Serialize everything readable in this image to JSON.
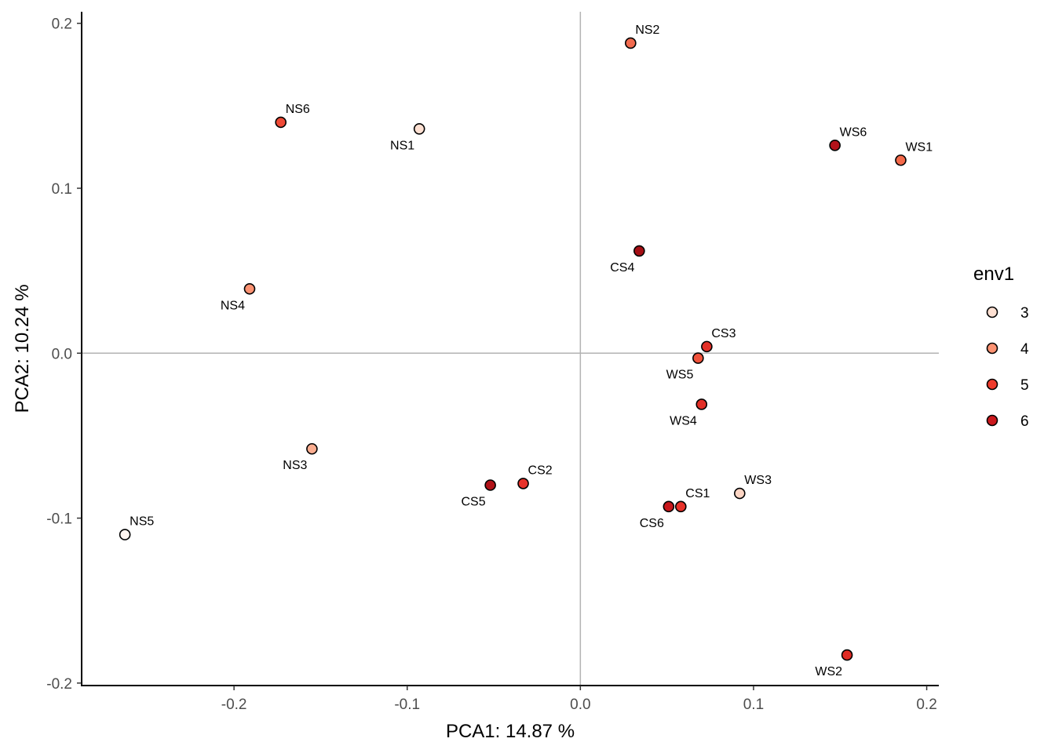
{
  "chart_data": {
    "type": "scatter",
    "title": "",
    "xlabel": "PCA1:  14.87 %",
    "ylabel": "PCA2:  10.24 %",
    "xlim": [
      -0.288,
      0.207
    ],
    "ylim": [
      -0.2015,
      0.207
    ],
    "x_ticks": [
      {
        "value": -0.2,
        "label": "-0.2"
      },
      {
        "value": -0.1,
        "label": "-0.1"
      },
      {
        "value": 0.0,
        "label": "0.0"
      },
      {
        "value": 0.1,
        "label": "0.1"
      },
      {
        "value": 0.2,
        "label": "0.2"
      }
    ],
    "y_ticks": [
      {
        "value": 0.2,
        "label": "0.2"
      },
      {
        "value": 0.1,
        "label": "0.1"
      },
      {
        "value": 0.0,
        "label": "0.0"
      },
      {
        "value": -0.1,
        "label": "-0.1"
      },
      {
        "value": -0.2,
        "label": "-0.2"
      }
    ],
    "reference_lines": {
      "x": 0,
      "y": 0
    },
    "grid": false,
    "legend": {
      "title": "env1",
      "placement": "right",
      "entries": [
        {
          "label": "3",
          "color": "#fee0d2"
        },
        {
          "label": "4",
          "color": "#fc9272"
        },
        {
          "label": "5",
          "color": "#ef3b2c"
        },
        {
          "label": "6",
          "color": "#cb181d"
        }
      ]
    },
    "points": [
      {
        "label": "NS1",
        "x": -0.093,
        "y": 0.136,
        "env1": "3",
        "color": "#fee0d2",
        "label_pos": "below-left"
      },
      {
        "label": "NS2",
        "x": 0.029,
        "y": 0.188,
        "env1": "5",
        "color": "#f26b4f",
        "label_pos": "above-right"
      },
      {
        "label": "NS3",
        "x": -0.155,
        "y": -0.058,
        "env1": "4",
        "color": "#fcae91",
        "label_pos": "below-left"
      },
      {
        "label": "NS4",
        "x": -0.191,
        "y": 0.039,
        "env1": "4",
        "color": "#fc9272",
        "label_pos": "below-left"
      },
      {
        "label": "NS5",
        "x": -0.263,
        "y": -0.11,
        "env1": "3",
        "color": "#fff5f0",
        "label_pos": "above-right"
      },
      {
        "label": "NS6",
        "x": -0.173,
        "y": 0.14,
        "env1": "5",
        "color": "#ef4a36",
        "label_pos": "above-right"
      },
      {
        "label": "CS1",
        "x": 0.058,
        "y": -0.093,
        "env1": "5",
        "color": "#e8322a",
        "label_pos": "above-right"
      },
      {
        "label": "CS2",
        "x": -0.033,
        "y": -0.079,
        "env1": "5",
        "color": "#e8322a",
        "label_pos": "above-right"
      },
      {
        "label": "CS3",
        "x": 0.073,
        "y": 0.004,
        "env1": "5",
        "color": "#e32f27",
        "label_pos": "above-right"
      },
      {
        "label": "CS4",
        "x": 0.034,
        "y": 0.062,
        "env1": "6",
        "color": "#a50f15",
        "label_pos": "below-left"
      },
      {
        "label": "CS5",
        "x": -0.052,
        "y": -0.08,
        "env1": "6",
        "color": "#b11218",
        "label_pos": "below-left"
      },
      {
        "label": "CS6",
        "x": 0.051,
        "y": -0.093,
        "env1": "6",
        "color": "#c8171c",
        "label_pos": "below-left"
      },
      {
        "label": "WS1",
        "x": 0.185,
        "y": 0.117,
        "env1": "5",
        "color": "#f4694a",
        "label_pos": "above-right"
      },
      {
        "label": "WS2",
        "x": 0.154,
        "y": -0.183,
        "env1": "5",
        "color": "#e02b24",
        "label_pos": "below-left"
      },
      {
        "label": "WS3",
        "x": 0.092,
        "y": -0.085,
        "env1": "3",
        "color": "#fdd5c4",
        "label_pos": "above-right"
      },
      {
        "label": "WS4",
        "x": 0.07,
        "y": -0.031,
        "env1": "5",
        "color": "#e32f27",
        "label_pos": "below-left"
      },
      {
        "label": "WS5",
        "x": 0.068,
        "y": -0.003,
        "env1": "5",
        "color": "#f0523b",
        "label_pos": "below-left"
      },
      {
        "label": "WS6",
        "x": 0.147,
        "y": 0.126,
        "env1": "6",
        "color": "#b3121a",
        "label_pos": "above-right"
      }
    ]
  }
}
